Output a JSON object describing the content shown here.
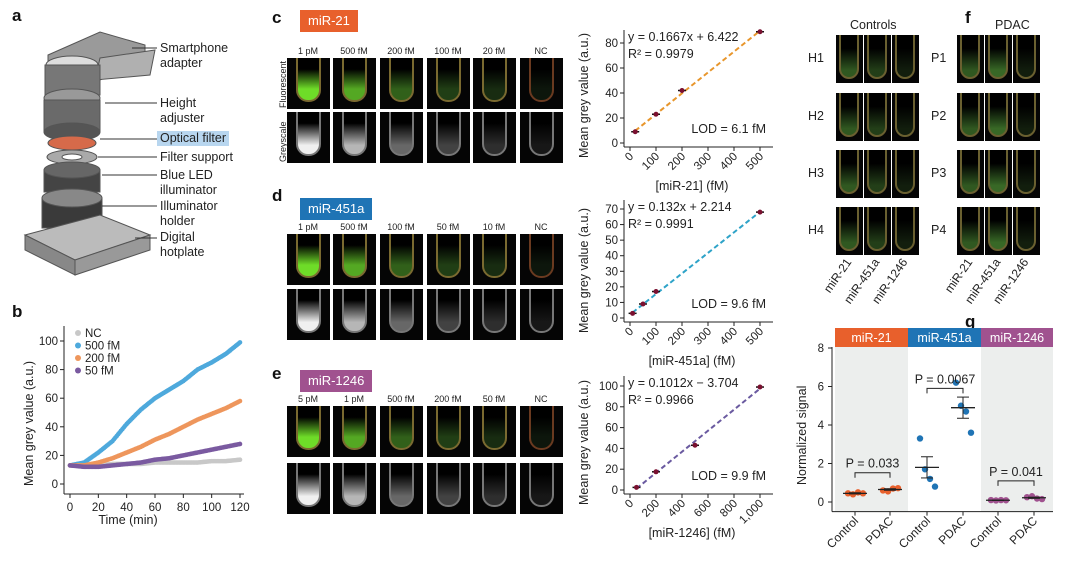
{
  "panels": {
    "a": "a",
    "b": "b",
    "c": "c",
    "d": "d",
    "e": "e",
    "f": "f",
    "g": "g"
  },
  "device": {
    "labels": [
      "Smartphone adapter",
      "Height adjuster",
      "Optical filter",
      "Filter support",
      "Blue LED illuminator",
      "Illuminator holder",
      "Digital hotplate"
    ],
    "highlight_color": "#b8d6ef"
  },
  "images": {
    "row_labels": [
      "Fluorescent",
      "Greyscale"
    ],
    "c": {
      "badge": "miR-21",
      "color": "#e8602c",
      "columns": [
        "1 pM",
        "500 fM",
        "200 fM",
        "100 fM",
        "20 fM",
        "NC"
      ]
    },
    "d": {
      "badge": "miR-451a",
      "color": "#1f74b5",
      "columns": [
        "1 pM",
        "500 fM",
        "100 fM",
        "50 fM",
        "10 fM",
        "NC"
      ]
    },
    "e": {
      "badge": "miR-1246",
      "color": "#a0528f",
      "columns": [
        "5 pM",
        "1 pM",
        "500 fM",
        "200 fM",
        "50 fM",
        "NC"
      ]
    }
  },
  "panel_f": {
    "group_labels": [
      "Controls",
      "PDAC"
    ],
    "control_rows": [
      "H1",
      "H2",
      "H3",
      "H4"
    ],
    "pdac_rows": [
      "P1",
      "P2",
      "P3",
      "P4"
    ],
    "columns": [
      "miR-21",
      "miR-451a",
      "miR-1246"
    ]
  },
  "chart_data": [
    {
      "id": "b",
      "type": "scatter",
      "xlabel": "Time (min)",
      "ylabel": "Mean grey value (a.u.)",
      "xlim": [
        0,
        120
      ],
      "ylim": [
        0,
        100
      ],
      "xticks": [
        0,
        20,
        40,
        60,
        80,
        100,
        120
      ],
      "yticks": [
        0,
        20,
        40,
        60,
        80,
        100
      ],
      "legend": "top-left",
      "x": [
        0,
        10,
        20,
        30,
        40,
        50,
        60,
        70,
        80,
        90,
        100,
        110,
        120
      ],
      "series": [
        {
          "name": "NC",
          "color": "#c8c8c8",
          "values": [
            13,
            13,
            13,
            14,
            14,
            14,
            15,
            15,
            15,
            15,
            16,
            16,
            17
          ]
        },
        {
          "name": "500 fM",
          "color": "#4ea9dc",
          "values": [
            13,
            15,
            22,
            30,
            42,
            52,
            60,
            66,
            72,
            80,
            85,
            91,
            99
          ]
        },
        {
          "name": "200 fM",
          "color": "#ee965c",
          "values": [
            13,
            13,
            15,
            18,
            22,
            26,
            31,
            35,
            40,
            45,
            49,
            53,
            58
          ]
        },
        {
          "name": "50 fM",
          "color": "#7a5aa0",
          "values": [
            13,
            12,
            12,
            13,
            14,
            15,
            17,
            18,
            20,
            22,
            24,
            26,
            28
          ]
        }
      ]
    },
    {
      "id": "c",
      "type": "scatter",
      "xlabel": "[miR-21] (fM)",
      "ylabel": "Mean grey value (a.u.)",
      "xlim": [
        0,
        500
      ],
      "ylim": [
        0,
        90
      ],
      "xticks": [
        0,
        100,
        200,
        300,
        400,
        500
      ],
      "yticks": [
        0,
        20,
        40,
        60,
        80
      ],
      "x": [
        20,
        100,
        200,
        500
      ],
      "values": [
        9,
        23,
        42,
        89
      ],
      "fit": {
        "slope": 0.1667,
        "intercept": 6.422
      },
      "equation": "y = 0.1667x + 6.422",
      "r2": "R² = 0.9979",
      "lod": "LOD = 6.1 fM",
      "color": "#e8962c"
    },
    {
      "id": "d",
      "type": "scatter",
      "xlabel": "[miR-451a] (fM)",
      "ylabel": "Mean grey value (a.u.)",
      "xlim": [
        0,
        500
      ],
      "ylim": [
        0,
        70
      ],
      "xticks": [
        0,
        100,
        200,
        300,
        400,
        500
      ],
      "yticks": [
        0,
        10,
        20,
        30,
        40,
        50,
        60,
        70
      ],
      "x": [
        10,
        50,
        100,
        500
      ],
      "values": [
        3,
        9,
        17,
        68
      ],
      "fit": {
        "slope": 0.132,
        "intercept": 2.214
      },
      "equation": "y = 0.132x + 2.214",
      "r2": "R² = 0.9991",
      "lod": "LOD = 9.6 fM",
      "color": "#2ea3c8"
    },
    {
      "id": "e",
      "type": "scatter",
      "xlabel": "[miR-1246] (fM)",
      "ylabel": "Mean grey value (a.u.)",
      "xlim": [
        0,
        1000
      ],
      "ylim": [
        0,
        100
      ],
      "xticks": [
        0,
        200,
        400,
        600,
        800,
        "1,000"
      ],
      "yticks": [
        0,
        20,
        40,
        60,
        80,
        100
      ],
      "x": [
        50,
        200,
        500,
        1000
      ],
      "values": [
        2.5,
        17.5,
        43,
        99
      ],
      "fit": {
        "slope": 0.1012,
        "intercept": -3.704
      },
      "equation": "y = 0.1012x − 3.704",
      "r2": "R² = 0.9966",
      "lod": "LOD = 9.9 fM",
      "color": "#6a5aa0"
    },
    {
      "id": "g",
      "type": "scatter",
      "ylabel": "Normalized signal",
      "ylim": [
        -0.5,
        8
      ],
      "yticks": [
        0,
        2,
        4,
        6,
        8
      ],
      "categories": [
        "Control",
        "PDAC",
        "Control",
        "PDAC",
        "Control",
        "PDAC"
      ],
      "groups": [
        {
          "name": "miR-21",
          "color": "#e8602c",
          "p": "P = 0.033",
          "control": [
            0.45,
            0.4,
            0.5,
            0.45
          ],
          "pdac": [
            0.6,
            0.55,
            0.7,
            0.72
          ],
          "control_mean": 0.45,
          "pdac_mean": 0.65,
          "control_sem": 0.03,
          "pdac_sem": 0.04
        },
        {
          "name": "miR-451a",
          "color": "#1f74b5",
          "p": "P = 0.0067",
          "control": [
            3.3,
            1.7,
            1.2,
            0.8
          ],
          "pdac": [
            6.2,
            5.0,
            4.7,
            3.6
          ],
          "control_mean": 1.8,
          "pdac_mean": 4.9,
          "control_sem": 0.55,
          "pdac_sem": 0.55
        },
        {
          "name": "miR-1246",
          "color": "#a0528f",
          "p": "P = 0.041",
          "control": [
            0.1,
            0.08,
            0.1,
            0.09
          ],
          "pdac": [
            0.25,
            0.3,
            0.18,
            0.15
          ],
          "control_mean": 0.09,
          "pdac_mean": 0.22,
          "control_sem": 0.01,
          "pdac_sem": 0.03
        }
      ]
    }
  ]
}
